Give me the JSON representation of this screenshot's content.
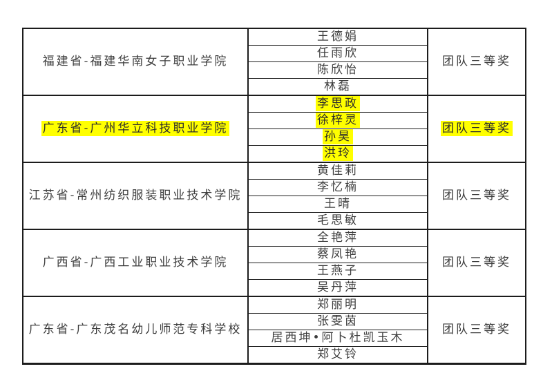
{
  "colors": {
    "highlight": "#ffff00",
    "border": "#1c1c1c",
    "text": "#3d3d3d",
    "page_background": "#ffffff"
  },
  "table": {
    "columns": [
      "school",
      "members",
      "award"
    ],
    "groups": [
      {
        "school": "福建省-福建华南女子职业学院",
        "members": [
          "王德娟",
          "任雨欣",
          "陈欣怡",
          "林磊"
        ],
        "award": "团队三等奖",
        "highlighted": false
      },
      {
        "school": "广东省-广州华立科技职业学院",
        "members": [
          "李思政",
          "徐梓灵",
          "孙昊",
          "洪玲"
        ],
        "award": "团队三等奖",
        "highlighted": true
      },
      {
        "school": "江苏省-常州纺织服装职业技术学院",
        "members": [
          "黄佳莉",
          "李忆楠",
          "王晴",
          "毛思敏"
        ],
        "award": "团队三等奖",
        "highlighted": false
      },
      {
        "school": "广西省-广西工业职业技术学院",
        "members": [
          "全艳萍",
          "蔡凤艳",
          "王燕子",
          "吴丹萍"
        ],
        "award": "团队三等奖",
        "highlighted": false
      },
      {
        "school": "广东省-广东茂名幼儿师范专科学校",
        "members": [
          "郑丽明",
          "张雯茵",
          "居西坤•阿卜杜凯玉木",
          "郑艾铃"
        ],
        "award": "团队三等奖",
        "highlighted": false
      }
    ]
  }
}
